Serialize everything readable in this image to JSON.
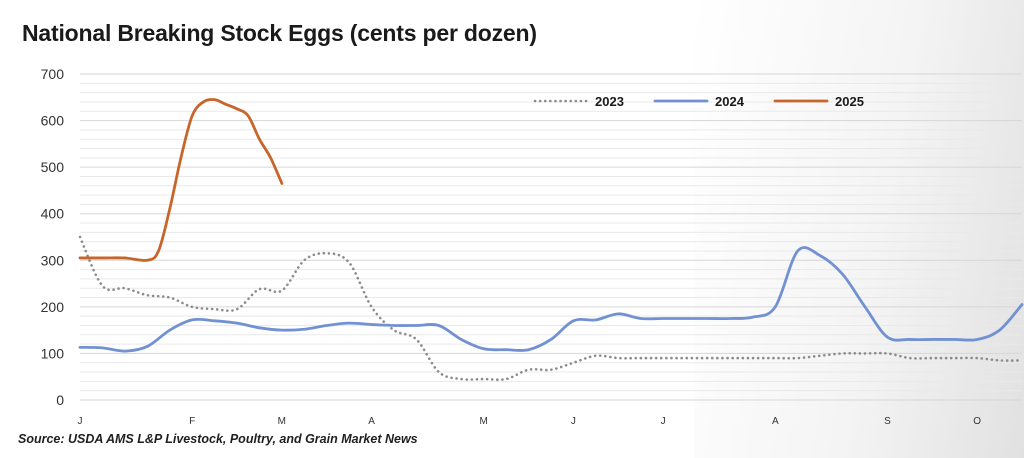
{
  "title": "National Breaking Stock Eggs (cents per dozen)",
  "source": "Source: USDA AMS L&P Livestock, Poultry, and Grain Market News",
  "chart_data": {
    "type": "line",
    "title": "National Breaking Stock Eggs (cents per dozen)",
    "xlabel": "",
    "ylabel": "",
    "ylim": [
      0,
      700
    ],
    "xlim": [
      1,
      43
    ],
    "yticks": [
      0,
      100,
      200,
      300,
      400,
      500,
      600,
      700
    ],
    "xticks": [
      {
        "week": 1,
        "label": "J"
      },
      {
        "week": 6,
        "label": "F"
      },
      {
        "week": 10,
        "label": "M"
      },
      {
        "week": 14,
        "label": "A"
      },
      {
        "week": 19,
        "label": "M"
      },
      {
        "week": 23,
        "label": "J"
      },
      {
        "week": 27,
        "label": "J"
      },
      {
        "week": 32,
        "label": "A"
      },
      {
        "week": 37,
        "label": "S"
      },
      {
        "week": 41,
        "label": "O"
      }
    ],
    "grid": true,
    "legend_position": "top-right",
    "series": [
      {
        "name": "2023",
        "color": "#8c8c8c",
        "style": "dotted",
        "x": [
          1,
          2,
          3,
          4,
          5,
          6,
          7,
          8,
          9,
          10,
          11,
          12,
          13,
          14,
          15,
          16,
          17,
          18,
          19,
          20,
          21,
          22,
          23,
          24,
          25,
          26,
          27,
          28,
          29,
          30,
          31,
          32,
          33,
          34,
          35,
          36,
          37,
          38,
          39,
          40,
          41,
          42,
          43
        ],
        "y": [
          350,
          245,
          240,
          225,
          220,
          200,
          195,
          195,
          238,
          235,
          300,
          315,
          295,
          200,
          150,
          130,
          60,
          45,
          45,
          45,
          65,
          65,
          80,
          95,
          90,
          90,
          90,
          90,
          90,
          90,
          90,
          90,
          90,
          95,
          100,
          100,
          100,
          90,
          90,
          90,
          90,
          85,
          85
        ]
      },
      {
        "name": "2024",
        "color": "#7291d2",
        "style": "solid",
        "x": [
          1,
          2,
          3,
          4,
          5,
          6,
          7,
          8,
          9,
          10,
          11,
          12,
          13,
          14,
          15,
          16,
          17,
          18,
          19,
          20,
          21,
          22,
          23,
          24,
          25,
          26,
          27,
          28,
          29,
          30,
          31,
          32,
          33,
          34,
          35,
          36,
          37,
          38,
          39,
          40,
          41,
          42,
          43
        ],
        "y": [
          113,
          112,
          105,
          115,
          150,
          172,
          170,
          165,
          155,
          150,
          152,
          160,
          165,
          162,
          160,
          160,
          160,
          130,
          110,
          108,
          108,
          130,
          170,
          172,
          185,
          175,
          175,
          175,
          175,
          175,
          178,
          200,
          320,
          310,
          270,
          200,
          135,
          130,
          130,
          130,
          130,
          150,
          205
        ]
      },
      {
        "name": "2025",
        "color": "#c8652a",
        "style": "solid",
        "x": [
          1,
          2,
          3,
          4,
          4.5,
          5,
          5.5,
          6,
          6.5,
          7,
          7.5,
          8,
          8.5,
          9,
          9.5,
          10
        ],
        "y": [
          305,
          305,
          305,
          300,
          320,
          410,
          520,
          610,
          640,
          645,
          635,
          625,
          610,
          560,
          520,
          465
        ]
      }
    ]
  }
}
